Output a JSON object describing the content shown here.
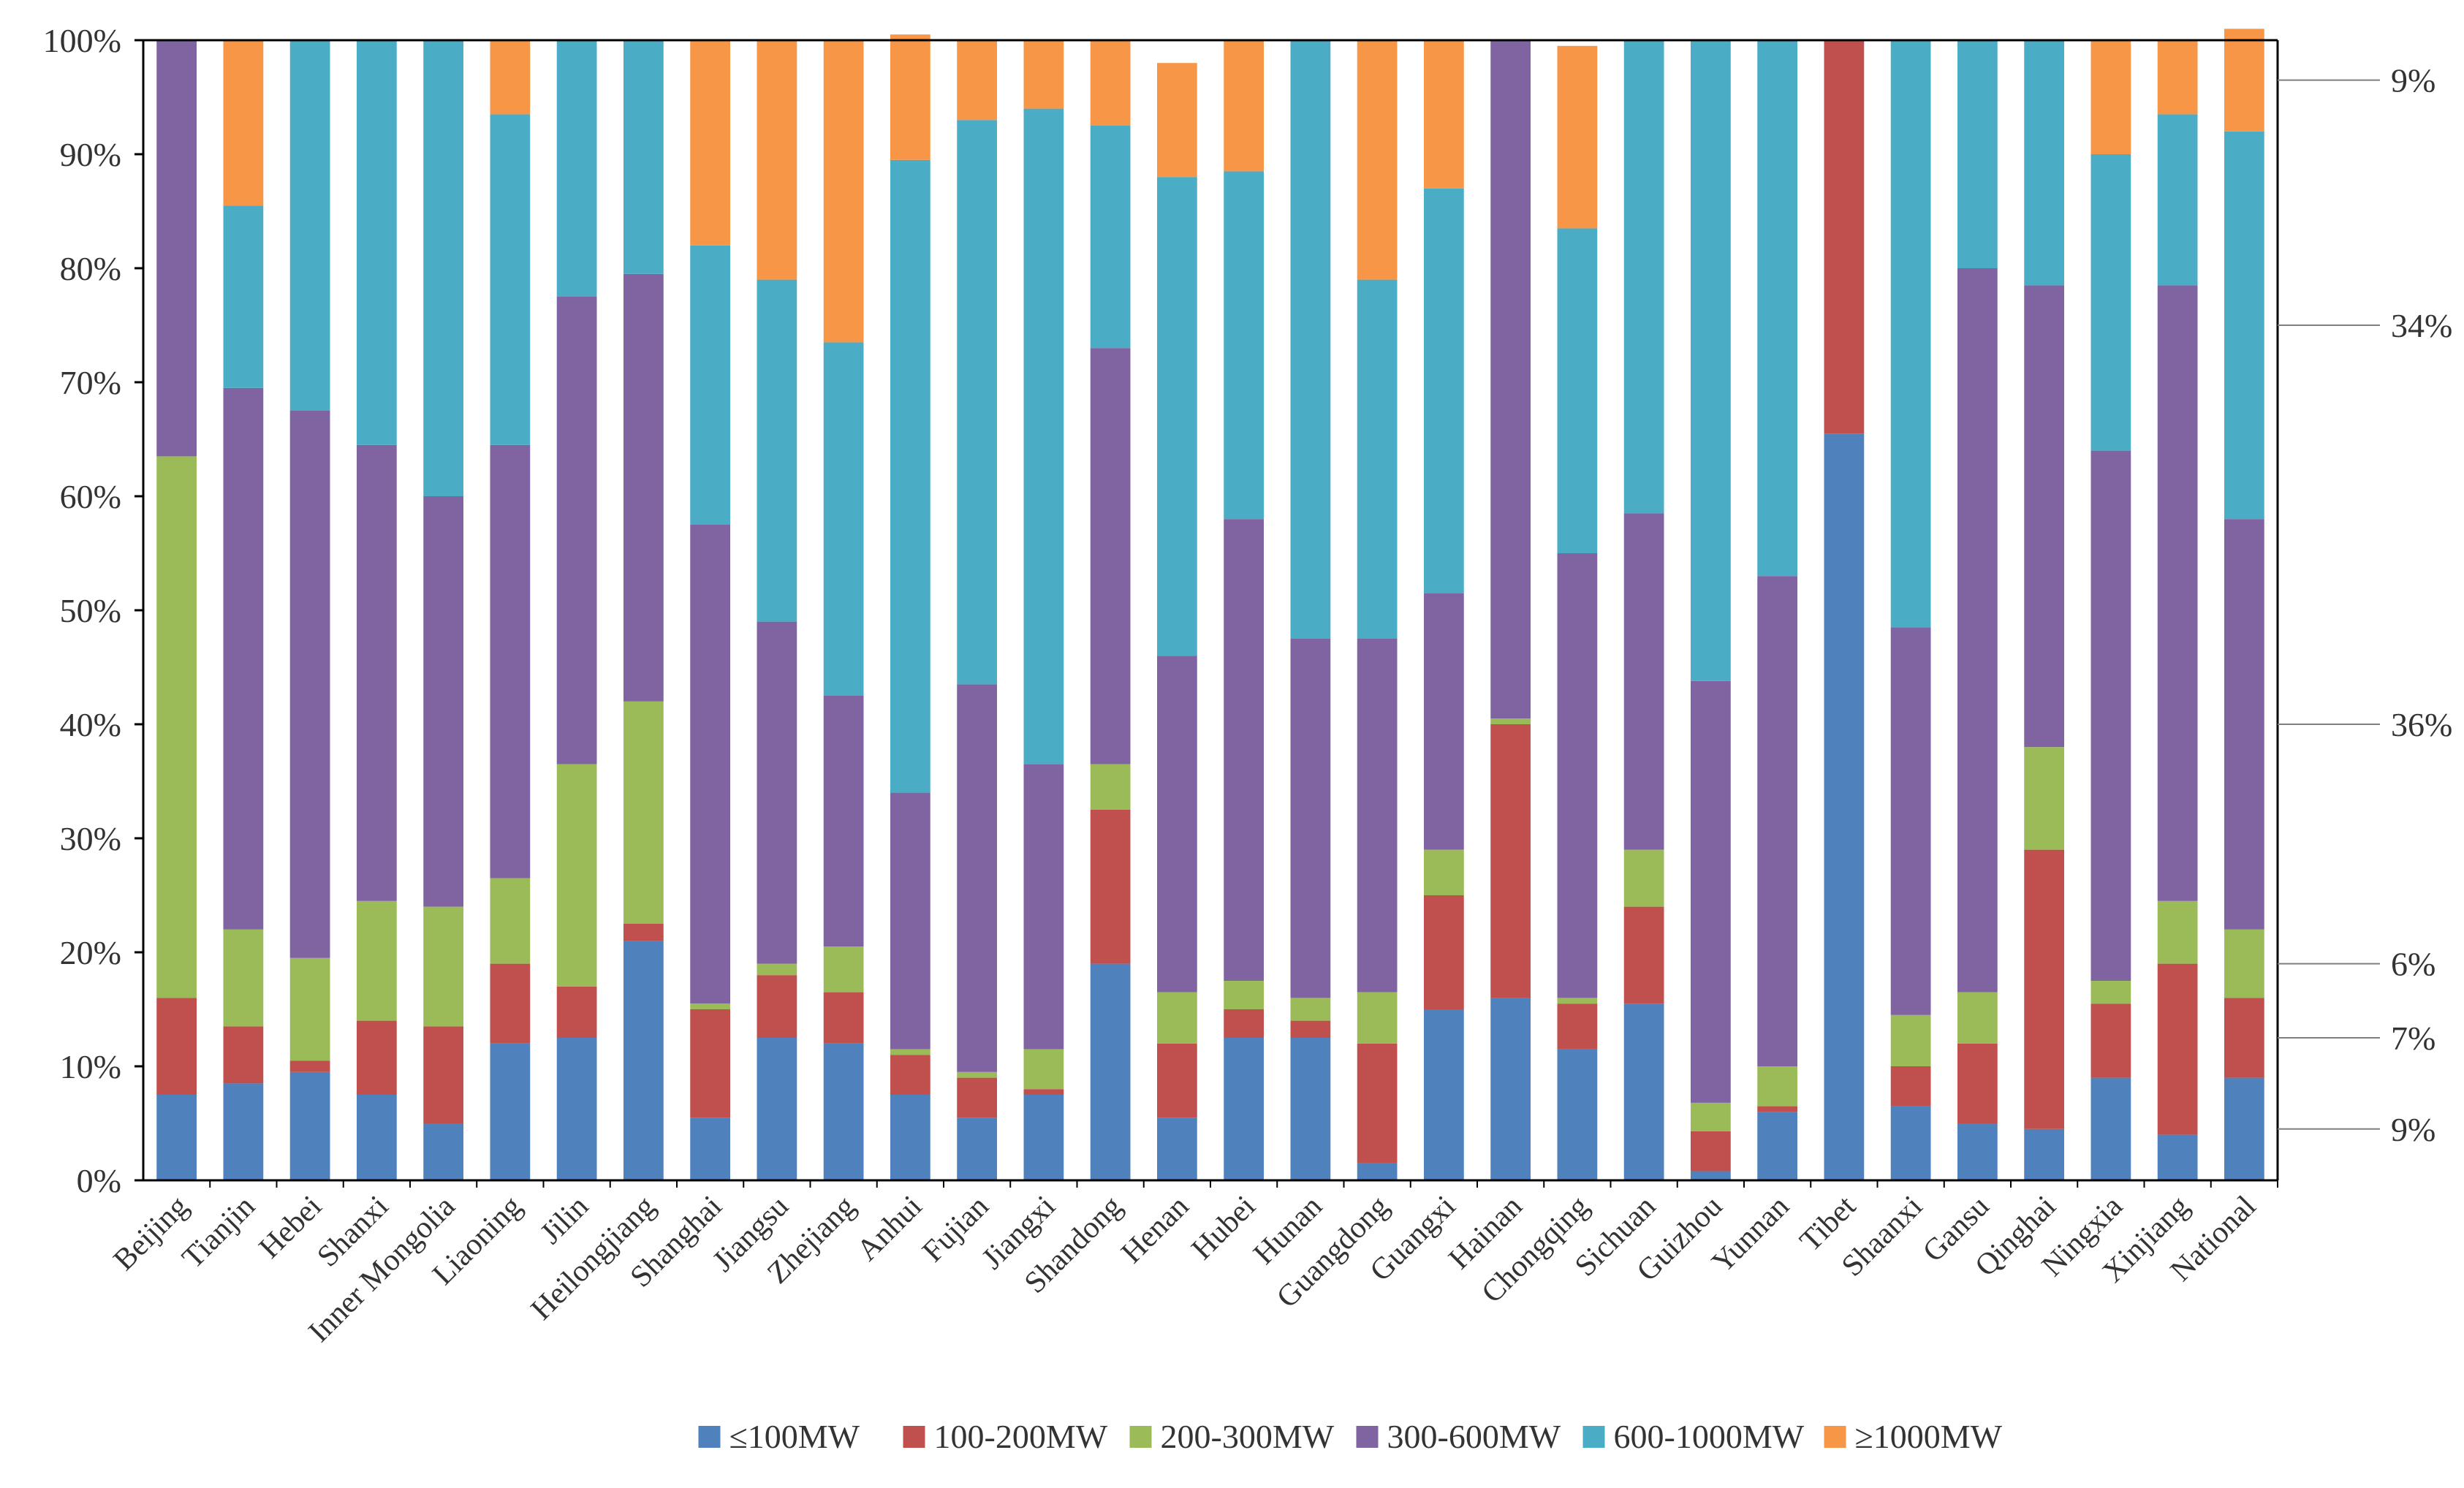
{
  "chart_data": {
    "type": "bar",
    "stacked": true,
    "title": "",
    "xlabel": "",
    "ylabel": "",
    "ylim": [
      0,
      100
    ],
    "y_ticks": [
      "0%",
      "10%",
      "20%",
      "30%",
      "40%",
      "50%",
      "60%",
      "70%",
      "80%",
      "90%",
      "100%"
    ],
    "categories": [
      "Beijing",
      "Tianjin",
      "Hebei",
      "Shanxi",
      "Inner Mongolia",
      "Liaoning",
      "Jilin",
      "Heilongjiang",
      "Shanghai",
      "Jiangsu",
      "Zhejiang",
      "Anhui",
      "Fujian",
      "Jiangxi",
      "Shandong",
      "Henan",
      "Hubei",
      "Hunan",
      "Guangdong",
      "Guangxi",
      "Hainan",
      "Chongqing",
      "Sichuan",
      "Guizhou",
      "Yunnan",
      "Tibet",
      "Shaanxi",
      "Gansu",
      "Qinghai",
      "Ningxia",
      "Xinjiang",
      "National"
    ],
    "series": [
      {
        "name": "≤100MW",
        "color": "#4F81BD",
        "values": [
          7.5,
          8.5,
          9.5,
          7.5,
          5,
          12,
          12.5,
          21,
          5.5,
          12.5,
          12,
          7.5,
          5.5,
          7.5,
          19,
          5.5,
          12.5,
          12.5,
          1.5,
          15,
          16,
          11.5,
          15.5,
          0.8,
          6,
          65.5,
          6.5,
          5,
          4.5,
          9,
          4,
          9
        ]
      },
      {
        "name": "100-200MW",
        "color": "#C0504D",
        "values": [
          8.5,
          5,
          1,
          6.5,
          8.5,
          7,
          4.5,
          1.5,
          9.5,
          5.5,
          4.5,
          3.5,
          3.5,
          0.5,
          13.5,
          6.5,
          2.5,
          1.5,
          10.5,
          10,
          24,
          4,
          8.5,
          3.5,
          0.5,
          34.5,
          3.5,
          7,
          24.5,
          6.5,
          15,
          7
        ]
      },
      {
        "name": "200-300MW",
        "color": "#9BBB59",
        "values": [
          47.5,
          8.5,
          9,
          10.5,
          10.5,
          7.5,
          19.5,
          19.5,
          0.5,
          1,
          4,
          0.5,
          0.5,
          3.5,
          4,
          4.5,
          2.5,
          2,
          4.5,
          4,
          0.5,
          0.5,
          5,
          2.5,
          3.5,
          0,
          4.5,
          4.5,
          9,
          2,
          5.5,
          6
        ]
      },
      {
        "name": "300-600MW",
        "color": "#8064A2",
        "values": [
          36.5,
          47.5,
          48,
          40,
          36,
          38,
          41,
          37.5,
          42,
          30,
          22,
          22.5,
          34,
          25,
          36.5,
          29.5,
          40.5,
          31.5,
          31,
          22.5,
          59.5,
          39,
          29.5,
          37,
          43,
          0,
          34,
          63.5,
          40.5,
          46.5,
          54,
          36
        ]
      },
      {
        "name": "600-1000MW",
        "color": "#4BACC6",
        "values": [
          0,
          16,
          32.5,
          35.5,
          40,
          29,
          22.5,
          20.5,
          24.5,
          30,
          31,
          55.5,
          49.5,
          57.5,
          19.5,
          42,
          30.5,
          52.5,
          31.5,
          35.5,
          0,
          28.5,
          41.5,
          56.2,
          47,
          0,
          51.5,
          20,
          21.5,
          26,
          15,
          34
        ]
      },
      {
        "name": "≥1000MW",
        "color": "#F79646",
        "values": [
          0,
          14.5,
          0,
          0,
          0,
          6.5,
          0,
          0,
          18,
          21,
          26.5,
          11,
          7,
          6,
          7.5,
          10,
          11.5,
          0,
          21,
          13,
          0,
          16,
          0,
          0,
          0,
          0,
          0,
          0,
          0,
          10,
          6.5,
          9
        ]
      }
    ],
    "right_annotations": [
      "9%",
      "34%",
      "36%",
      "6%",
      "7%",
      "9%"
    ],
    "legend_position": "bottom",
    "grid": false
  }
}
